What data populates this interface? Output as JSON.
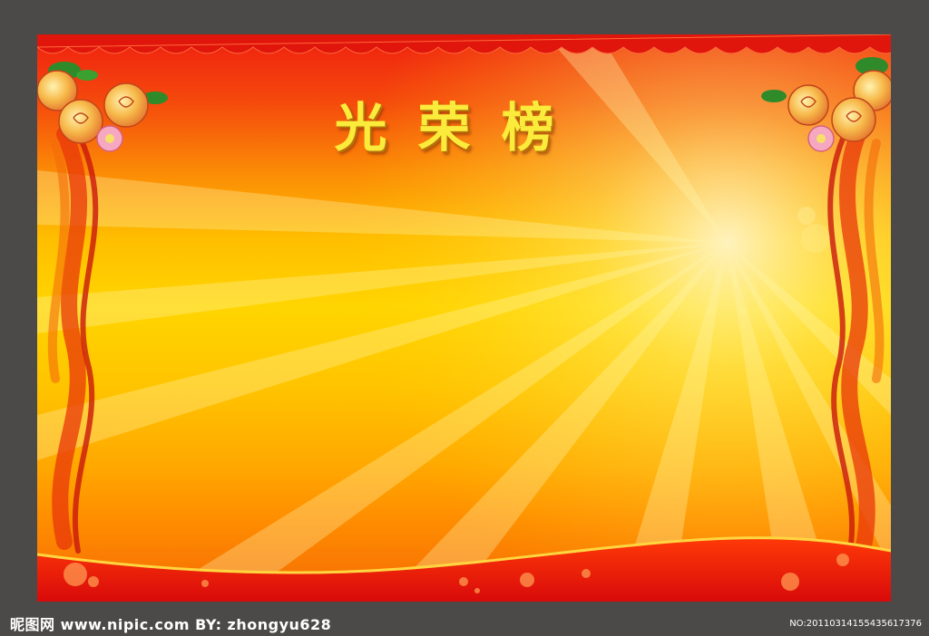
{
  "board": {
    "title": "光荣榜",
    "colors": {
      "frame": "#4b4a48",
      "red": "#ef1f10",
      "yellow": "#ffd500",
      "title_text": "#fbeb3a"
    }
  },
  "watermark": {
    "site": "昵图网 www.nipic.com  BY: zhongyu628",
    "id": "NO:20110314155435617376"
  }
}
